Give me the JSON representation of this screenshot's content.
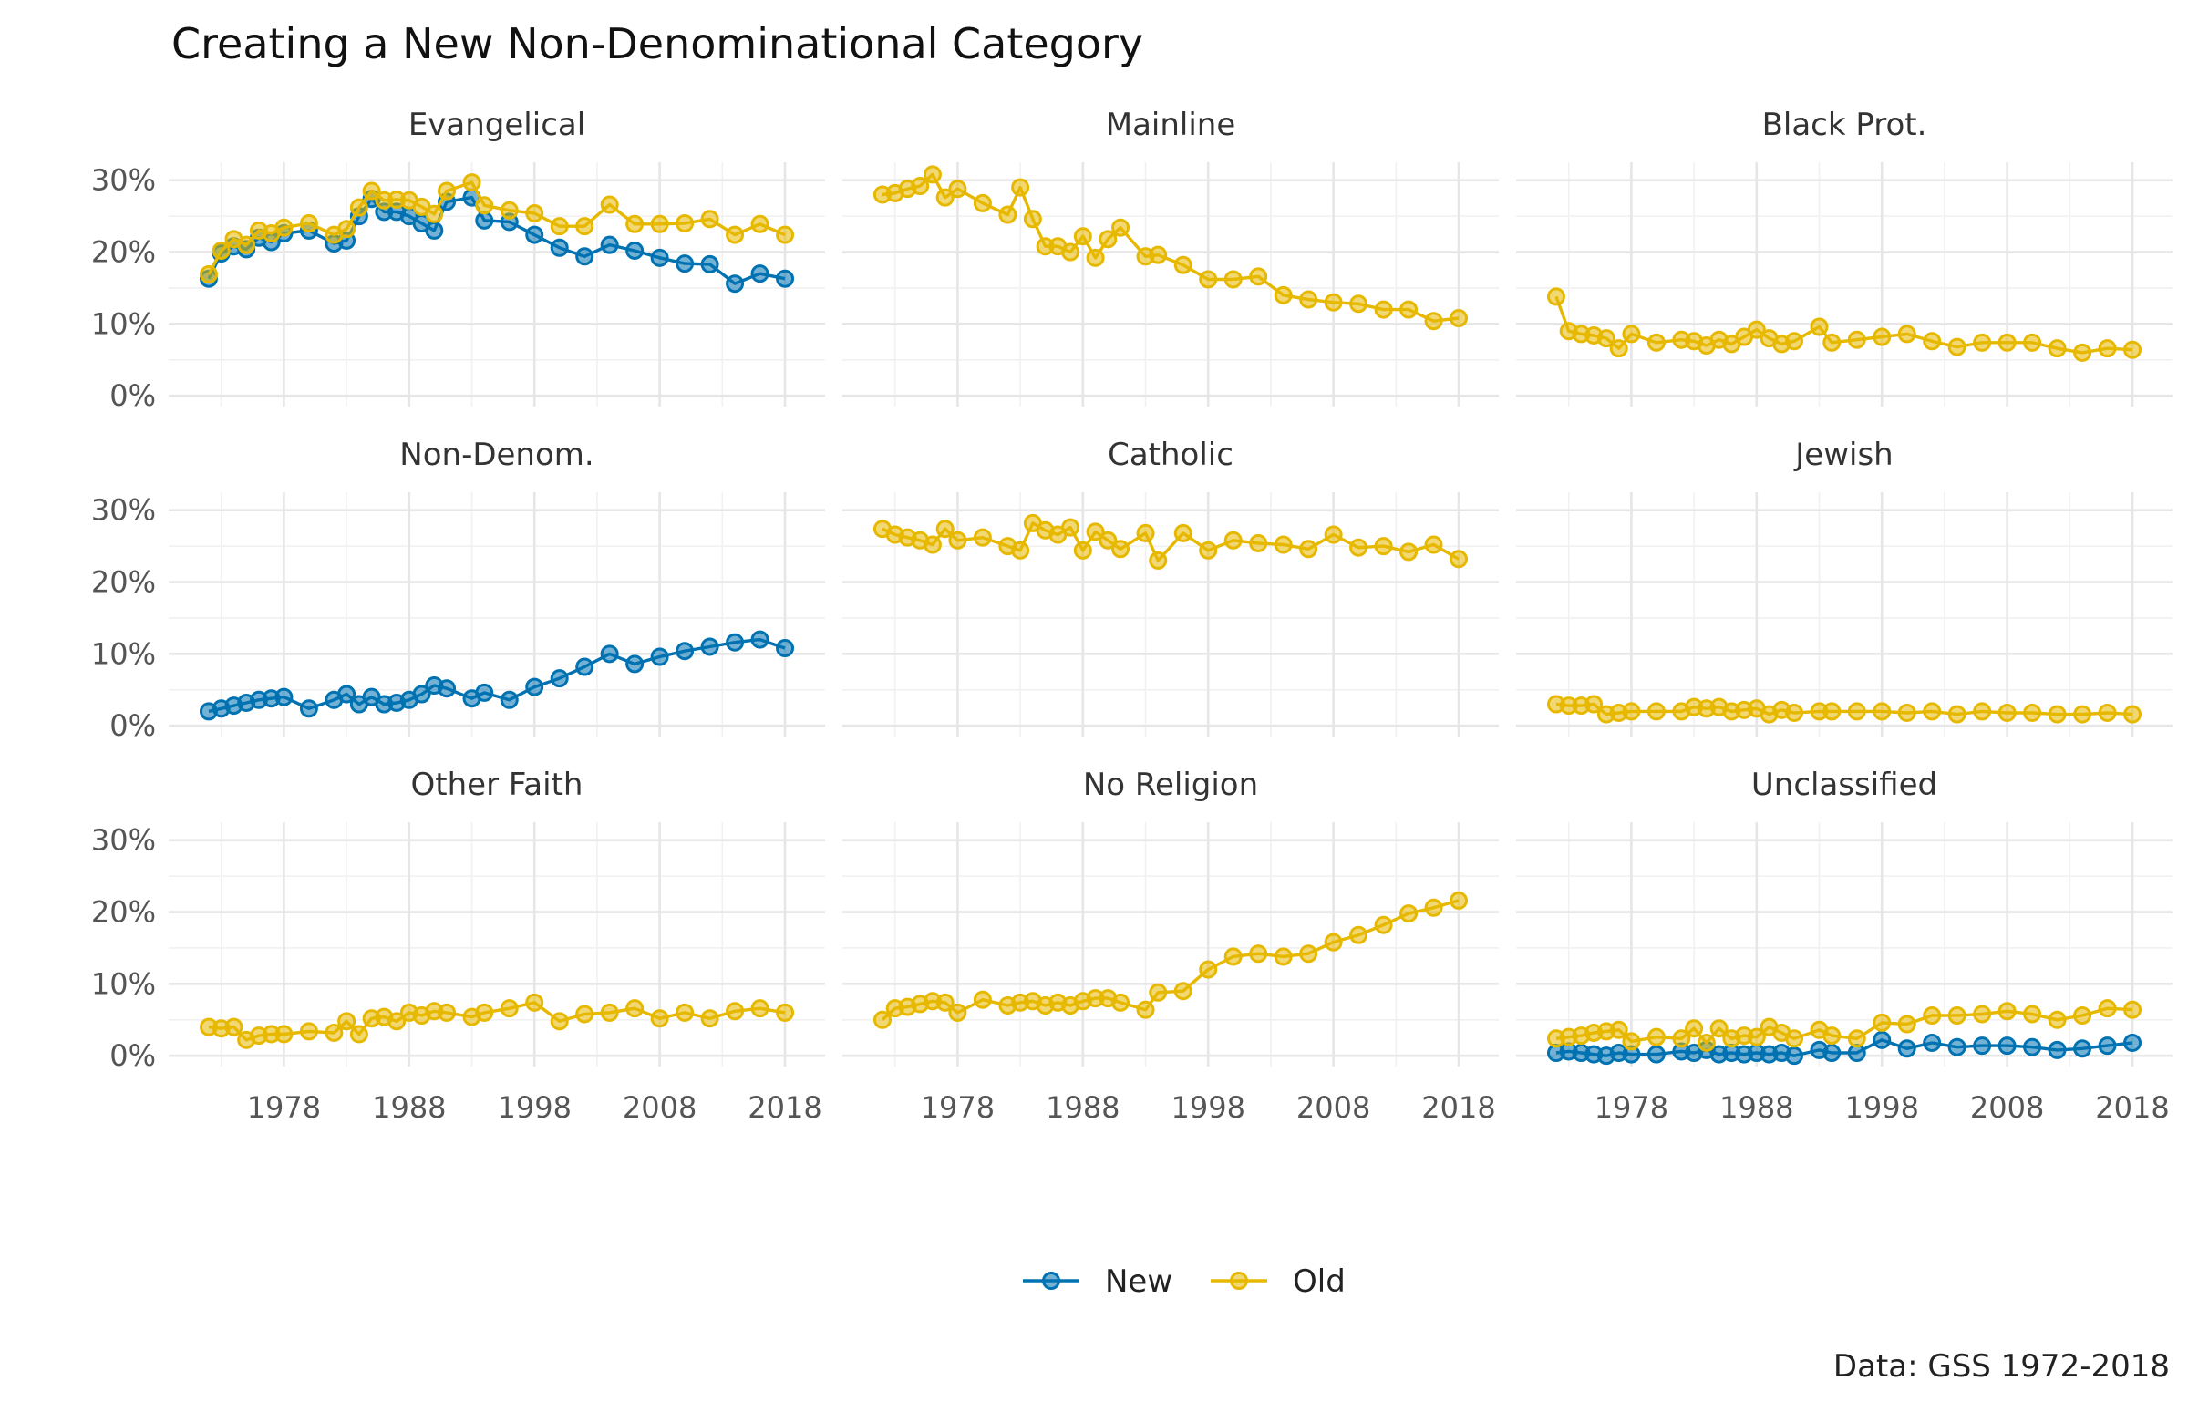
{
  "chart_data": {
    "type": "line",
    "title": "Creating a New Non-Denominational Category",
    "caption": "Data: GSS 1972-2018",
    "legend_position": "bottom",
    "legend": [
      {
        "name": "New",
        "color": "#0072B2"
      },
      {
        "name": "Old",
        "color": "#E7B800"
      }
    ],
    "x_ticks": [
      1978,
      1988,
      1998,
      2008,
      2018
    ],
    "x_tick_labels": [
      "1978",
      "1988",
      "1998",
      "2008",
      "2018"
    ],
    "xlim": [
      1968.8,
      2021.2
    ],
    "y_ticks": [
      0,
      10,
      20,
      30
    ],
    "y_tick_labels": [
      "0%",
      "10%",
      "20%",
      "30%"
    ],
    "ylim": [
      -1.5,
      32.5
    ],
    "grid": true,
    "layout": "3x3 facets",
    "years": [
      1972,
      1973,
      1974,
      1975,
      1976,
      1977,
      1978,
      1980,
      1982,
      1983,
      1984,
      1985,
      1986,
      1987,
      1988,
      1989,
      1990,
      1991,
      1993,
      1994,
      1996,
      1998,
      2000,
      2002,
      2004,
      2006,
      2008,
      2010,
      2012,
      2014,
      2016,
      2018
    ],
    "panels": [
      {
        "title": "Evangelical",
        "series": [
          {
            "name": "New",
            "values": [
              16.3,
              19.8,
              20.8,
              20.4,
              22.0,
              21.4,
              22.6,
              23.0,
              21.2,
              21.6,
              25.0,
              27.4,
              25.6,
              25.6,
              25.0,
              24.0,
              23.0,
              27.0,
              27.6,
              24.4,
              24.2,
              22.4,
              20.6,
              19.4,
              21.0,
              20.2,
              19.2,
              18.4,
              18.3,
              15.6,
              17.0,
              16.3
            ]
          },
          {
            "name": "Old",
            "values": [
              16.9,
              20.2,
              21.8,
              21.0,
              23.0,
              22.6,
              23.4,
              24.0,
              22.4,
              23.2,
              26.2,
              28.5,
              27.2,
              27.3,
              27.2,
              26.3,
              25.3,
              28.5,
              29.7,
              26.5,
              25.8,
              25.4,
              23.6,
              23.6,
              26.6,
              23.9,
              23.9,
              24.0,
              24.6,
              22.4,
              23.9,
              22.4
            ]
          }
        ]
      },
      {
        "title": "Mainline",
        "series": [
          {
            "name": "Old",
            "values": [
              28.0,
              28.2,
              28.8,
              29.2,
              30.8,
              27.6,
              28.8,
              26.8,
              25.2,
              29.0,
              24.6,
              20.8,
              20.8,
              20.0,
              22.2,
              19.2,
              21.8,
              23.4,
              19.4,
              19.6,
              18.2,
              16.2,
              16.2,
              16.6,
              14.0,
              13.4,
              13.0,
              12.8,
              12.0,
              12.0,
              10.4,
              10.8
            ]
          }
        ]
      },
      {
        "title": "Black Prot.",
        "series": [
          {
            "name": "Old",
            "values": [
              13.8,
              9.0,
              8.6,
              8.4,
              8.0,
              6.6,
              8.6,
              7.4,
              7.8,
              7.6,
              7.0,
              7.8,
              7.2,
              8.2,
              9.2,
              8.0,
              7.2,
              7.6,
              9.6,
              7.4,
              7.8,
              8.2,
              8.6,
              7.6,
              6.8,
              7.4,
              7.4,
              7.4,
              6.6,
              6.0,
              6.6,
              6.4
            ]
          }
        ]
      },
      {
        "title": "Non-Denom.",
        "series": [
          {
            "name": "New",
            "values": [
              2.0,
              2.4,
              2.8,
              3.2,
              3.6,
              3.8,
              4.0,
              2.4,
              3.6,
              4.4,
              3.0,
              4.0,
              3.0,
              3.2,
              3.6,
              4.4,
              5.6,
              5.2,
              3.8,
              4.6,
              3.6,
              5.4,
              6.6,
              8.2,
              10.0,
              8.6,
              9.6,
              10.4,
              11.0,
              11.6,
              12.0,
              10.8
            ]
          }
        ]
      },
      {
        "title": "Catholic",
        "series": [
          {
            "name": "Old",
            "values": [
              27.4,
              26.6,
              26.2,
              25.8,
              25.2,
              27.4,
              25.8,
              26.2,
              25.0,
              24.4,
              28.2,
              27.2,
              26.6,
              27.6,
              24.4,
              27.0,
              25.8,
              24.6,
              26.8,
              23.0,
              26.8,
              24.4,
              25.8,
              25.4,
              25.2,
              24.6,
              26.6,
              24.8,
              25.0,
              24.2,
              25.2,
              23.2
            ]
          }
        ]
      },
      {
        "title": "Jewish",
        "series": [
          {
            "name": "Old",
            "values": [
              3.0,
              2.8,
              2.8,
              3.0,
              1.6,
              1.8,
              2.0,
              2.0,
              2.0,
              2.6,
              2.4,
              2.6,
              2.0,
              2.2,
              2.4,
              1.6,
              2.2,
              1.8,
              2.0,
              2.0,
              2.0,
              2.0,
              1.8,
              2.0,
              1.6,
              2.0,
              1.8,
              1.8,
              1.6,
              1.6,
              1.8,
              1.6
            ]
          }
        ]
      },
      {
        "title": "Other Faith",
        "series": [
          {
            "name": "Old",
            "values": [
              4.0,
              3.8,
              4.0,
              2.2,
              2.8,
              3.0,
              3.0,
              3.4,
              3.2,
              4.8,
              3.0,
              5.2,
              5.4,
              4.8,
              6.0,
              5.6,
              6.2,
              6.0,
              5.4,
              6.0,
              6.6,
              7.4,
              4.8,
              5.8,
              6.0,
              6.6,
              5.2,
              6.0,
              5.2,
              6.2,
              6.6,
              6.0
            ]
          }
        ]
      },
      {
        "title": "No Religion",
        "series": [
          {
            "name": "Old",
            "values": [
              5.0,
              6.6,
              6.8,
              7.2,
              7.6,
              7.4,
              6.0,
              7.8,
              7.0,
              7.4,
              7.6,
              7.0,
              7.4,
              7.0,
              7.6,
              8.0,
              8.0,
              7.4,
              6.4,
              8.8,
              9.0,
              12.0,
              13.8,
              14.2,
              13.8,
              14.2,
              15.8,
              16.8,
              18.2,
              19.8,
              20.6,
              21.6
            ]
          }
        ]
      },
      {
        "title": "Unclassified",
        "series": [
          {
            "name": "New",
            "values": [
              0.4,
              0.6,
              0.4,
              0.2,
              0.0,
              0.4,
              0.2,
              0.2,
              0.6,
              0.4,
              0.8,
              0.2,
              0.4,
              0.2,
              0.4,
              0.2,
              0.4,
              0.0,
              0.8,
              0.4,
              0.4,
              2.2,
              1.0,
              1.8,
              1.2,
              1.4,
              1.4,
              1.2,
              0.8,
              1.0,
              1.4,
              1.8
            ]
          },
          {
            "name": "Old",
            "values": [
              2.4,
              2.6,
              2.8,
              3.2,
              3.4,
              3.6,
              2.0,
              2.6,
              2.4,
              3.8,
              1.8,
              3.8,
              2.4,
              2.8,
              2.6,
              4.0,
              3.2,
              2.4,
              3.6,
              2.8,
              2.4,
              4.6,
              4.4,
              5.6,
              5.6,
              5.8,
              6.2,
              5.8,
              5.0,
              5.6,
              6.6,
              6.4
            ]
          }
        ]
      }
    ]
  }
}
